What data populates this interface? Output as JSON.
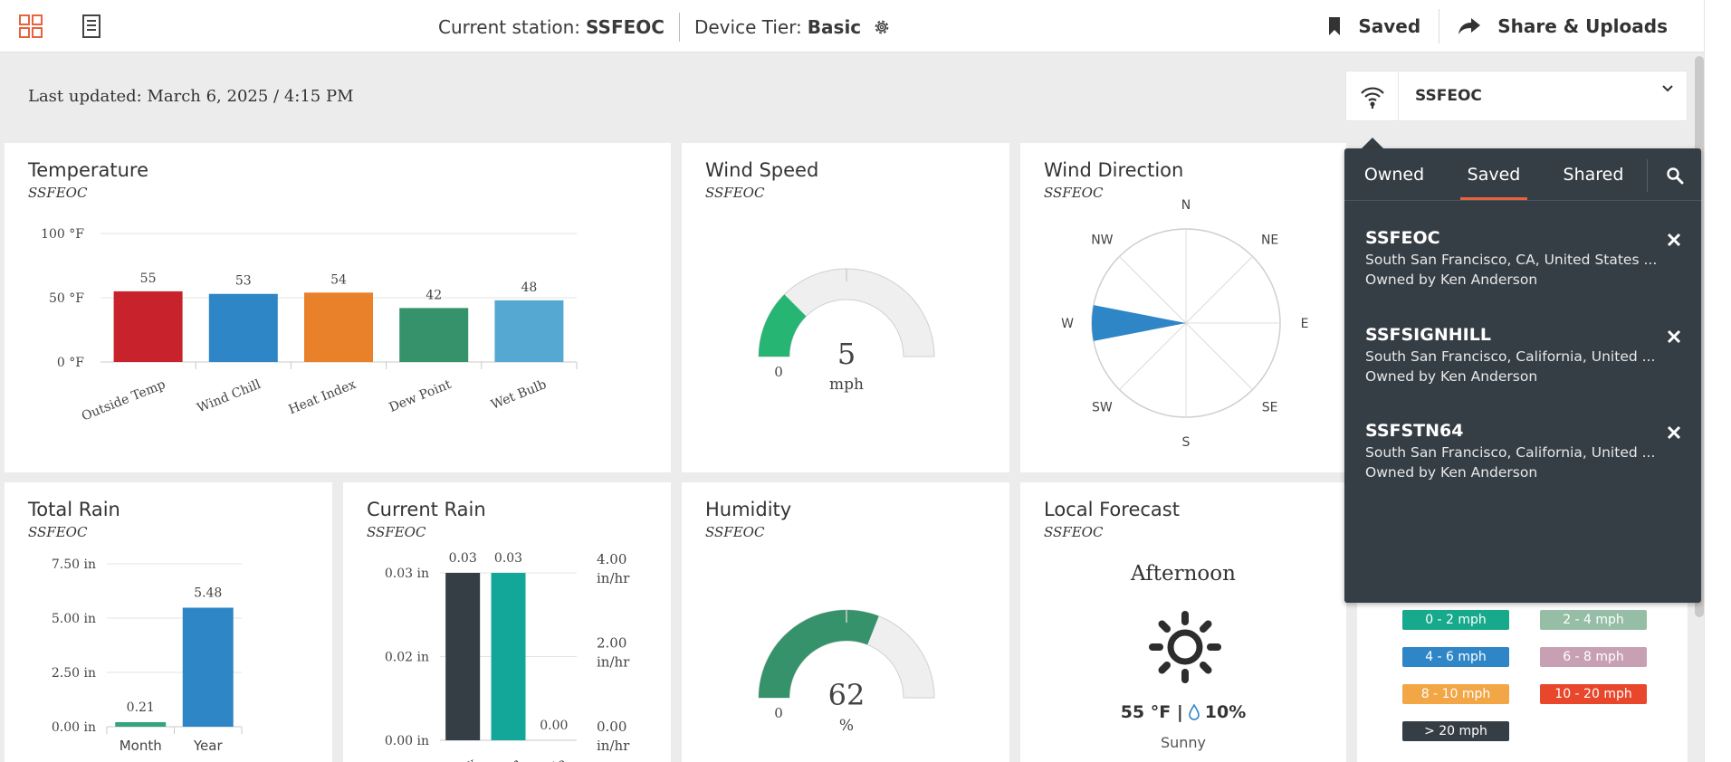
{
  "topbar": {
    "station_label": "Current station:",
    "station_value": "SSFEOC",
    "tier_label": "Device Tier:",
    "tier_value": "Basic",
    "saved_label": "Saved",
    "share_label": "Share & Uploads"
  },
  "subheader": {
    "last_updated": "Last updated: March 6, 2025 / 4:15 PM",
    "selected_station": "SSFEOC"
  },
  "temperature": {
    "title": "Temperature",
    "subtitle": "SSFEOC",
    "chart_data": {
      "type": "bar",
      "categories": [
        "Outside Temp",
        "Wind Chill",
        "Heat Index",
        "Dew Point",
        "Wet Bulb"
      ],
      "values": [
        55,
        53,
        54,
        42,
        48
      ],
      "colors": [
        "#c8232c",
        "#2f86c7",
        "#e9802a",
        "#35926a",
        "#55a8d2"
      ],
      "ylim": [
        0,
        100
      ],
      "yticks": [
        "0 °F",
        "50 °F",
        "100 °F"
      ]
    }
  },
  "wind_speed": {
    "title": "Wind Speed",
    "subtitle": "SSFEOC",
    "value": "5",
    "unit": "mph",
    "min_label": "0",
    "fraction": 0.25
  },
  "wind_direction": {
    "title": "Wind Direction",
    "subtitle": "SSFEOC",
    "directions": [
      "N",
      "NE",
      "E",
      "SE",
      "S",
      "SW",
      "W",
      "NW"
    ],
    "pointing": "W"
  },
  "total_rain": {
    "title": "Total Rain",
    "subtitle": "SSFEOC",
    "chart_data": {
      "type": "bar",
      "categories": [
        "Month",
        "Year"
      ],
      "values": [
        0.21,
        5.48
      ],
      "value_labels": [
        "0.21",
        "5.48"
      ],
      "colors": [
        "#35a37b",
        "#2f86c7"
      ],
      "ylim": [
        0,
        7.5
      ],
      "yticks": [
        "0.00 in",
        "2.50 in",
        "5.00 in",
        "7.50 in"
      ]
    }
  },
  "current_rain": {
    "title": "Current Rain",
    "subtitle": "SSFEOC",
    "chart_data": {
      "type": "bar",
      "categories": [
        "day",
        "rm",
        "Rate"
      ],
      "values": [
        0.03,
        0.03,
        0.0
      ],
      "value_labels": [
        "0.03",
        "0.03",
        "0.00"
      ],
      "colors": [
        "#353e45",
        "#13a79a",
        "#ffffff"
      ],
      "ylim": [
        0,
        0.03
      ],
      "yticks_left": [
        "0.00 in",
        "0.02 in",
        "0.03 in"
      ],
      "yticks_right": [
        "0.00 in/hr",
        "2.00 in/hr",
        "4.00 in/hr"
      ]
    }
  },
  "humidity": {
    "title": "Humidity",
    "subtitle": "SSFEOC",
    "value": "62",
    "unit": "%",
    "min_label": "0",
    "fraction": 0.62
  },
  "forecast": {
    "title": "Local Forecast",
    "subtitle": "SSFEOC",
    "period": "Afternoon",
    "temp": "55 °F |",
    "precip": "10%",
    "condition": "Sunny"
  },
  "station_panel": {
    "tabs": [
      "Owned",
      "Saved",
      "Shared"
    ],
    "active_tab": "Saved",
    "items": [
      {
        "name": "SSFEOC",
        "address": "South San Francisco, CA, United States ...",
        "owner": "Owned by Ken Anderson"
      },
      {
        "name": "SSFSIGNHILL",
        "address": "South San Francisco, California, United ...",
        "owner": "Owned by Ken Anderson"
      },
      {
        "name": "SSFSTN64",
        "address": "South San Francisco, California, United ...",
        "owner": "Owned by Ken Anderson"
      }
    ]
  },
  "wind_legend": {
    "chips": [
      {
        "label": "0 - 2 mph",
        "color": "#17a98c"
      },
      {
        "label": "2 - 4 mph",
        "color": "#96bea7"
      },
      {
        "label": "4 - 6 mph",
        "color": "#2f86c7"
      },
      {
        "label": "6 - 8 mph",
        "color": "#c7a0b4"
      },
      {
        "label": "8 - 10 mph",
        "color": "#f2a646"
      },
      {
        "label": "10 - 20 mph",
        "color": "#e8472b"
      },
      {
        "label": "> 20 mph",
        "color": "#353e45"
      }
    ]
  }
}
